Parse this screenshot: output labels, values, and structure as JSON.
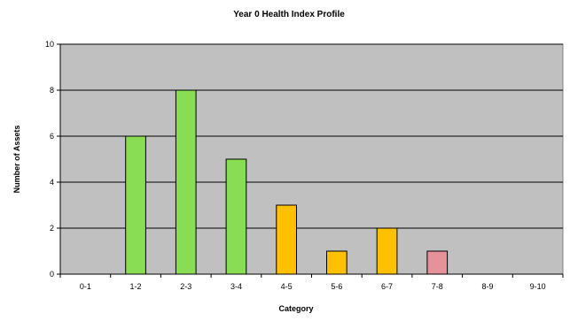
{
  "chart_data": {
    "type": "bar",
    "title": "Year 0 Health Index Profile",
    "xlabel": "Category",
    "ylabel": "Number of Assets",
    "categories": [
      "0-1",
      "1-2",
      "2-3",
      "3-4",
      "4-5",
      "5-6",
      "6-7",
      "7-8",
      "8-9",
      "9-10"
    ],
    "values": [
      0,
      6,
      8,
      5,
      3,
      1,
      2,
      1,
      0,
      0
    ],
    "bar_colors": [
      "#88dd55",
      "#88dd55",
      "#88dd55",
      "#88dd55",
      "#ffc000",
      "#ffc000",
      "#ffc000",
      "#e6929a",
      "#e6929a",
      "#e6929a"
    ],
    "ylim": [
      0,
      10
    ],
    "yticks": [
      0,
      2,
      4,
      6,
      8,
      10
    ],
    "grid": true,
    "legend": "none",
    "plot_background": "#c0c0c0"
  }
}
